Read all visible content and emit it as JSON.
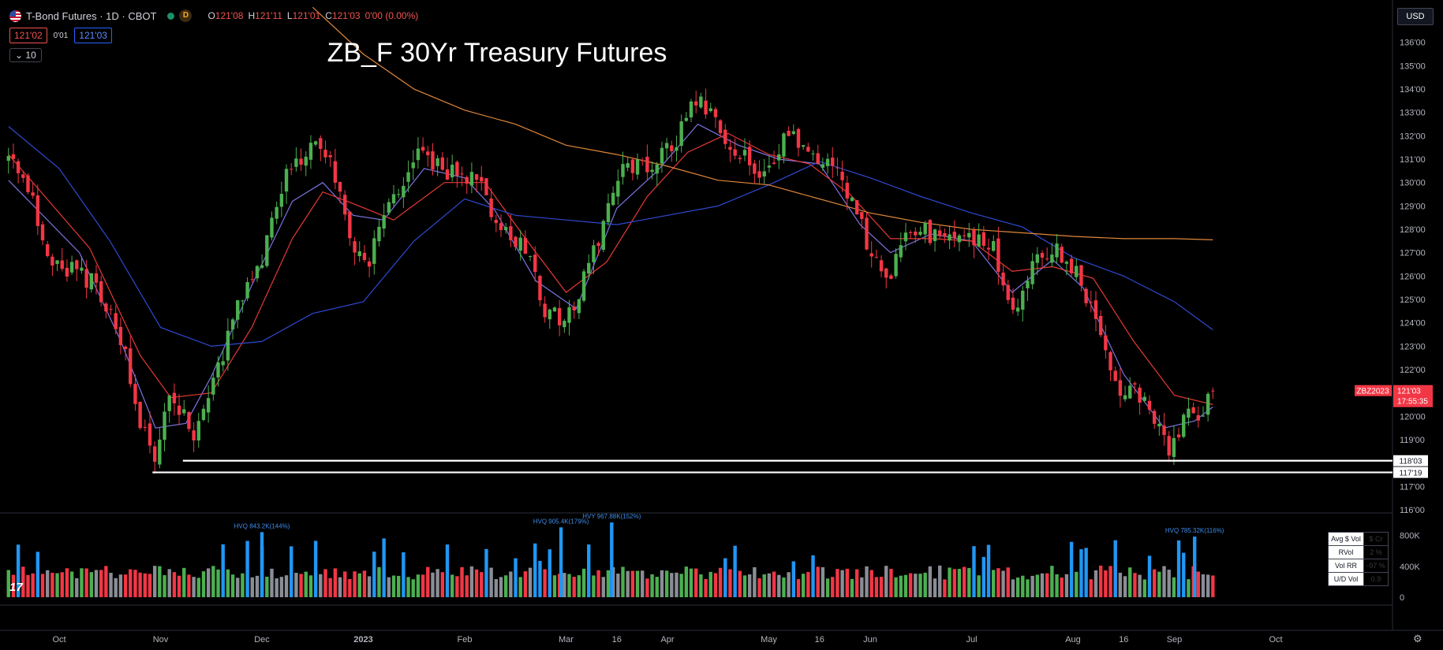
{
  "header": {
    "symbol": "T-Bond Futures · 1D · CBOT",
    "badge": "D",
    "ohlc": [
      {
        "k": "O",
        "v": "121'08"
      },
      {
        "k": "H",
        "v": "121'11"
      },
      {
        "k": "L",
        "v": "121'01"
      },
      {
        "k": "C",
        "v": "121'03"
      },
      {
        "k": "",
        "v": "0'00 (0.00%)"
      }
    ],
    "bid": "121'02",
    "spread": "0'01",
    "ask": "121'03",
    "indicator_count": "10"
  },
  "currency": "USD",
  "tv_logo": "17",
  "vol_table": [
    {
      "label": "Avg $ Vol",
      "value": "$ Cr"
    },
    {
      "label": "RVol",
      "value": "2 %"
    },
    {
      "label": "Vol RR",
      "value": "-97 %"
    },
    {
      "label": "U/D Vol",
      "value": "0.9"
    }
  ],
  "chart_data": {
    "type": "candlestick",
    "title": "ZB_F 30Yr Treasury Futures",
    "ylim": [
      115.9,
      136.8
    ],
    "y_ticks": [
      "116'00",
      "117'00",
      "118'00",
      "119'00",
      "120'00",
      "121'00",
      "122'00",
      "123'00",
      "124'00",
      "125'00",
      "126'00",
      "127'00",
      "128'00",
      "129'00",
      "130'00",
      "131'00",
      "132'00",
      "133'00",
      "134'00",
      "135'00",
      "136'00"
    ],
    "x_ticks": [
      {
        "label": "Oct",
        "t": 0.0
      },
      {
        "label": "Nov",
        "t": 1.0
      },
      {
        "label": "Dec",
        "t": 2.0
      },
      {
        "label": "2023",
        "t": 3.0
      },
      {
        "label": "Feb",
        "t": 4.0
      },
      {
        "label": "Mar",
        "t": 5.0
      },
      {
        "label": "16",
        "t": 5.5
      },
      {
        "label": "Apr",
        "t": 6.0
      },
      {
        "label": "May",
        "t": 7.0
      },
      {
        "label": "16",
        "t": 7.5
      },
      {
        "label": "Jun",
        "t": 8.0
      },
      {
        "label": "Jul",
        "t": 9.0
      },
      {
        "label": "Aug",
        "t": 10.0
      },
      {
        "label": "16",
        "t": 10.5
      },
      {
        "label": "Sep",
        "t": 11.0
      },
      {
        "label": "Oct",
        "t": 12.0
      }
    ],
    "close_path": [
      [
        -0.5,
        131.0
      ],
      [
        -0.3,
        129.6
      ],
      [
        -0.1,
        126.7
      ],
      [
        0.15,
        126.3
      ],
      [
        0.35,
        125.7
      ],
      [
        0.6,
        123.5
      ],
      [
        0.8,
        119.8
      ],
      [
        0.95,
        118.4
      ],
      [
        1.1,
        121.0
      ],
      [
        1.35,
        119.2
      ],
      [
        1.55,
        121.9
      ],
      [
        1.75,
        124.5
      ],
      [
        2.0,
        126.8
      ],
      [
        2.2,
        130.0
      ],
      [
        2.4,
        131.0
      ],
      [
        2.6,
        131.7
      ],
      [
        2.8,
        129.0
      ],
      [
        3.0,
        126.2
      ],
      [
        3.15,
        127.8
      ],
      [
        3.35,
        129.6
      ],
      [
        3.55,
        131.4
      ],
      [
        3.8,
        130.4
      ],
      [
        4.1,
        130.3
      ],
      [
        4.3,
        128.4
      ],
      [
        4.6,
        127.3
      ],
      [
        4.8,
        124.5
      ],
      [
        5.0,
        124.0
      ],
      [
        5.15,
        125.5
      ],
      [
        5.3,
        127.4
      ],
      [
        5.5,
        130.5
      ],
      [
        5.8,
        130.7
      ],
      [
        6.1,
        132.0
      ],
      [
        6.3,
        133.6
      ],
      [
        6.6,
        131.9
      ],
      [
        6.9,
        130.2
      ],
      [
        7.2,
        132.0
      ],
      [
        7.45,
        130.8
      ],
      [
        7.7,
        130.4
      ],
      [
        8.0,
        127.2
      ],
      [
        8.2,
        126.0
      ],
      [
        8.4,
        128.2
      ],
      [
        8.7,
        127.5
      ],
      [
        9.0,
        127.6
      ],
      [
        9.2,
        127.3
      ],
      [
        9.4,
        124.2
      ],
      [
        9.6,
        126.5
      ],
      [
        9.8,
        127.3
      ],
      [
        10.0,
        126.4
      ],
      [
        10.25,
        124.0
      ],
      [
        10.45,
        121.2
      ],
      [
        10.7,
        120.8
      ],
      [
        10.95,
        118.3
      ],
      [
        11.1,
        119.9
      ],
      [
        11.25,
        120.2
      ],
      [
        11.38,
        121.1
      ]
    ],
    "moving_averages": [
      {
        "color": "#7b74e0",
        "points": [
          [
            -0.5,
            130.1
          ],
          [
            0.2,
            127.0
          ],
          [
            0.6,
            123.3
          ],
          [
            0.95,
            119.5
          ],
          [
            1.25,
            119.7
          ],
          [
            1.5,
            121.7
          ],
          [
            1.9,
            125.6
          ],
          [
            2.3,
            129.2
          ],
          [
            2.6,
            130.0
          ],
          [
            2.9,
            128.6
          ],
          [
            3.2,
            128.4
          ],
          [
            3.6,
            130.6
          ],
          [
            4.0,
            130.2
          ],
          [
            4.3,
            128.8
          ],
          [
            4.7,
            125.8
          ],
          [
            5.1,
            124.6
          ],
          [
            5.5,
            128.9
          ],
          [
            5.9,
            130.5
          ],
          [
            6.3,
            132.5
          ],
          [
            6.7,
            131.6
          ],
          [
            7.1,
            131.0
          ],
          [
            7.5,
            130.8
          ],
          [
            7.9,
            128.2
          ],
          [
            8.2,
            127.0
          ],
          [
            8.6,
            127.8
          ],
          [
            9.0,
            127.5
          ],
          [
            9.4,
            125.3
          ],
          [
            9.8,
            126.7
          ],
          [
            10.1,
            125.5
          ],
          [
            10.5,
            121.8
          ],
          [
            10.9,
            119.5
          ],
          [
            11.2,
            119.8
          ],
          [
            11.38,
            120.4
          ]
        ]
      },
      {
        "color": "#e53935",
        "points": [
          [
            -0.5,
            131.2
          ],
          [
            0.3,
            127.2
          ],
          [
            0.8,
            122.6
          ],
          [
            1.1,
            120.8
          ],
          [
            1.5,
            121.0
          ],
          [
            1.9,
            123.8
          ],
          [
            2.3,
            127.6
          ],
          [
            2.6,
            129.6
          ],
          [
            2.9,
            129.1
          ],
          [
            3.3,
            128.4
          ],
          [
            3.8,
            130.0
          ],
          [
            4.2,
            130.0
          ],
          [
            4.6,
            127.6
          ],
          [
            5.0,
            125.3
          ],
          [
            5.4,
            126.6
          ],
          [
            5.8,
            129.4
          ],
          [
            6.2,
            131.3
          ],
          [
            6.6,
            132.1
          ],
          [
            7.0,
            131.2
          ],
          [
            7.4,
            130.8
          ],
          [
            7.8,
            129.5
          ],
          [
            8.2,
            127.6
          ],
          [
            8.6,
            127.6
          ],
          [
            9.0,
            127.5
          ],
          [
            9.4,
            126.2
          ],
          [
            9.8,
            126.4
          ],
          [
            10.2,
            125.9
          ],
          [
            10.6,
            123.2
          ],
          [
            11.0,
            120.9
          ],
          [
            11.38,
            120.5
          ]
        ]
      },
      {
        "color": "#2f49d1",
        "points": [
          [
            -0.5,
            132.4
          ],
          [
            0.0,
            130.6
          ],
          [
            0.5,
            127.5
          ],
          [
            1.0,
            123.8
          ],
          [
            1.5,
            123.0
          ],
          [
            2.0,
            123.2
          ],
          [
            2.5,
            124.4
          ],
          [
            3.0,
            124.9
          ],
          [
            3.5,
            127.5
          ],
          [
            4.0,
            129.3
          ],
          [
            4.5,
            128.6
          ],
          [
            5.0,
            128.4
          ],
          [
            5.5,
            128.2
          ],
          [
            6.0,
            128.6
          ],
          [
            6.5,
            129.0
          ],
          [
            7.0,
            129.9
          ],
          [
            7.5,
            130.9
          ],
          [
            8.0,
            130.2
          ],
          [
            8.5,
            129.4
          ],
          [
            9.0,
            128.7
          ],
          [
            9.5,
            128.1
          ],
          [
            10.0,
            126.8
          ],
          [
            10.5,
            126.0
          ],
          [
            11.0,
            124.9
          ],
          [
            11.38,
            123.7
          ]
        ]
      },
      {
        "color": "#e0873a",
        "points": [
          [
            2.5,
            137.5
          ],
          [
            3.0,
            135.5
          ],
          [
            3.5,
            134.0
          ],
          [
            4.0,
            133.1
          ],
          [
            4.5,
            132.5
          ],
          [
            5.0,
            131.6
          ],
          [
            5.5,
            131.2
          ],
          [
            6.0,
            130.7
          ],
          [
            6.5,
            130.1
          ],
          [
            7.0,
            129.9
          ],
          [
            7.5,
            129.3
          ],
          [
            8.0,
            128.7
          ],
          [
            8.5,
            128.3
          ],
          [
            9.0,
            128.0
          ],
          [
            9.5,
            127.85
          ],
          [
            10.0,
            127.7
          ],
          [
            10.5,
            127.6
          ],
          [
            11.0,
            127.6
          ],
          [
            11.38,
            127.55
          ]
        ]
      }
    ],
    "support_lines": [
      {
        "label": "118'03",
        "value": 118.1,
        "from_t": 1.22
      },
      {
        "label": "117'19",
        "value": 117.6,
        "from_t": 0.92
      }
    ],
    "last_price": {
      "symbol": "ZBZ2023",
      "price": "121'03",
      "countdown": "17:55:35",
      "value": 121.1
    },
    "volume": {
      "ylim": [
        0,
        1000000
      ],
      "y_ticks": [
        "0",
        "400K",
        "800K"
      ],
      "annotations": [
        {
          "text": "HVQ 843.2K(144%)",
          "t": 2.0,
          "value": 843000
        },
        {
          "text": "HVQ 905.4K(179%)",
          "t": 4.95,
          "value": 905000
        },
        {
          "text": "HVY 967.88K(152%)",
          "t": 5.45,
          "value": 968000
        },
        {
          "text": "HVQ 785.32K(116%)",
          "t": 11.2,
          "value": 785000
        }
      ]
    }
  }
}
